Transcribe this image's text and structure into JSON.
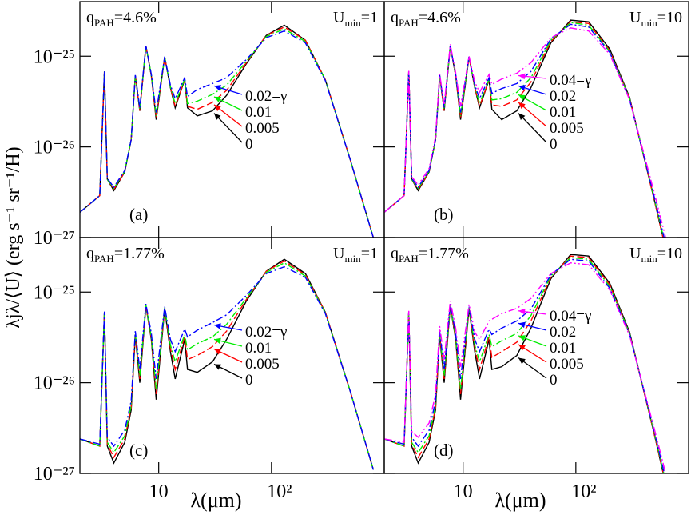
{
  "chart_data": [
    {
      "type": "line",
      "panel_label": "(a)",
      "ylabel": "λjλ/⟨U⟩ (erg s⁻¹ sr⁻¹/H)",
      "q_label": {
        "base": "q",
        "sub": "PAH",
        "text": "=4.6%"
      },
      "u_label": {
        "base": "U",
        "sub": "min",
        "text": "=1"
      },
      "log_x": true,
      "log_y": true,
      "xlim": [
        2,
        1000
      ],
      "ylim": [
        1e-27,
        4e-25
      ],
      "xticks": [
        10,
        {
          "value": 100,
          "label": "10²"
        }
      ],
      "yticks": [
        {
          "value": 1e-27,
          "label": "10⁻²⁷"
        },
        {
          "value": 1e-26,
          "label": "10⁻²⁶"
        },
        {
          "value": 1e-25,
          "label": "10⁻²⁵"
        }
      ],
      "show_xtick_labels": false,
      "show_ytick_labels": true,
      "x": [
        2,
        3,
        3.3,
        3.5,
        4,
        5,
        5.7,
        6.2,
        6.8,
        7.7,
        8.6,
        9.5,
        11.3,
        12.7,
        14,
        17,
        18,
        22,
        30,
        40,
        60,
        90,
        130,
        200,
        300,
        500,
        800
      ],
      "series": [
        {
          "name": "0",
          "color": "#000000",
          "linestyle": "solid",
          "values": [
            1.9e-27,
            2.9e-27,
            6.8e-26,
            4.4e-27,
            3.3e-27,
            5.3e-27,
            1.2e-26,
            6.1e-26,
            2.5e-26,
            1.3e-25,
            6.1e-26,
            2e-26,
            9.8e-26,
            4.5e-26,
            2.7e-26,
            5.5e-26,
            2.7e-26,
            2.2e-26,
            2.5e-26,
            3.7e-26,
            8.3e-26,
            1.7e-25,
            2.2e-25,
            1.5e-25,
            5.5e-26,
            7.2e-27,
            1e-27
          ]
        },
        {
          "name": "0.005",
          "color": "#ff0000",
          "linestyle": "dashed",
          "values": [
            1.9e-27,
            2.9e-27,
            6.8e-26,
            4.4e-27,
            3.4e-27,
            5.3e-27,
            1.2e-26,
            6.1e-26,
            2.5e-26,
            1.3e-25,
            6.1e-26,
            2.1e-26,
            9.8e-26,
            4.5e-26,
            2.8e-26,
            5.5e-26,
            2.8e-26,
            2.6e-26,
            3.1e-26,
            4.2e-26,
            8.5e-26,
            1.7e-25,
            2.1e-25,
            1.5e-25,
            5.5e-26,
            7.2e-27,
            1e-27
          ]
        },
        {
          "name": "0.01",
          "color": "#00ee00",
          "linestyle": "dashdot",
          "values": [
            1.9e-27,
            2.9e-27,
            6.8e-26,
            4.4e-27,
            3.5e-27,
            5.4e-27,
            1.2e-26,
            6.1e-26,
            2.6e-26,
            1.3e-25,
            6.2e-26,
            2.2e-26,
            9.8e-26,
            4.6e-26,
            3e-26,
            5.6e-26,
            3e-26,
            3.2e-26,
            3.8e-26,
            4.8e-26,
            8.8e-26,
            1.65e-25,
            2e-25,
            1.45e-25,
            5.5e-26,
            7.2e-27,
            1e-27
          ]
        },
        {
          "name": "0.02=γ",
          "color": "#0000ff",
          "linestyle": "dashdot",
          "values": [
            1.9e-27,
            2.9e-27,
            6.8e-26,
            4.5e-27,
            3.6e-27,
            5.5e-27,
            1.2e-26,
            6.2e-26,
            2.7e-26,
            1.3e-25,
            6.3e-26,
            2.4e-26,
            9.9e-26,
            4.8e-26,
            3.4e-26,
            5.8e-26,
            3.6e-26,
            4.3e-26,
            5e-26,
            5.8e-26,
            9.2e-26,
            1.6e-25,
            1.9e-25,
            1.4e-25,
            5.4e-26,
            7.2e-27,
            1e-27
          ]
        }
      ]
    },
    {
      "type": "line",
      "panel_label": "(b)",
      "q_label": {
        "base": "q",
        "sub": "PAH",
        "text": "=4.6%"
      },
      "u_label": {
        "base": "U",
        "sub": "min",
        "text": "=10"
      },
      "log_x": true,
      "log_y": true,
      "xlim": [
        2,
        1000
      ],
      "ylim": [
        1e-27,
        4e-25
      ],
      "xticks": [
        10,
        {
          "value": 100,
          "label": "10²"
        }
      ],
      "yticks": [
        {
          "value": 1e-27,
          "label": "10⁻²⁷"
        },
        {
          "value": 1e-26,
          "label": "10⁻²⁶"
        },
        {
          "value": 1e-25,
          "label": "10⁻²⁵"
        }
      ],
      "show_xtick_labels": false,
      "show_ytick_labels": false,
      "x": [
        2,
        3,
        3.3,
        3.5,
        4,
        5,
        5.7,
        6.2,
        6.8,
        7.7,
        8.6,
        9.5,
        11.3,
        12.7,
        14,
        17,
        18,
        22,
        30,
        40,
        60,
        90,
        130,
        200,
        300,
        500,
        800
      ],
      "series": [
        {
          "name": "0",
          "color": "#000000",
          "linestyle": "solid",
          "values": [
            1.9e-27,
            2.9e-27,
            6.8e-26,
            4.4e-27,
            3.3e-27,
            5.3e-27,
            1.2e-26,
            6.1e-26,
            2.5e-26,
            1.3e-25,
            6.1e-26,
            2e-26,
            9.8e-26,
            4.5e-26,
            2.7e-26,
            5.5e-26,
            2.6e-26,
            2e-26,
            2.5e-26,
            4.5e-26,
            1.4e-25,
            2.5e-25,
            2.4e-25,
            1.2e-25,
            3.5e-26,
            2.5e-27,
            2e-28
          ]
        },
        {
          "name": "0.005",
          "color": "#ff0000",
          "linestyle": "dashed",
          "values": [
            1.9e-27,
            2.9e-27,
            6.8e-26,
            4.4e-27,
            3.4e-27,
            5.3e-27,
            1.2e-26,
            6.1e-26,
            2.5e-26,
            1.3e-25,
            6.1e-26,
            2.1e-26,
            9.8e-26,
            4.5e-26,
            2.8e-26,
            5.5e-26,
            2.9e-26,
            2.8e-26,
            3.3e-26,
            5.2e-26,
            1.45e-25,
            2.4e-25,
            2.3e-25,
            1.15e-25,
            3.4e-26,
            2.5e-27,
            2e-28
          ]
        },
        {
          "name": "0.01",
          "color": "#00ee00",
          "linestyle": "dashdot",
          "values": [
            1.9e-27,
            2.9e-27,
            6.8e-26,
            4.4e-27,
            3.5e-27,
            5.4e-27,
            1.2e-26,
            6.1e-26,
            2.6e-26,
            1.3e-25,
            6.2e-26,
            2.2e-26,
            9.8e-26,
            4.6e-26,
            3e-26,
            5.6e-26,
            3.3e-26,
            3.4e-26,
            4e-26,
            5.8e-26,
            1.5e-25,
            2.35e-25,
            2.2e-25,
            1.12e-25,
            3.4e-26,
            2.6e-27,
            2.2e-28
          ]
        },
        {
          "name": "0.02",
          "color": "#0000ff",
          "linestyle": "dashdot",
          "values": [
            1.9e-27,
            2.9e-27,
            6.8e-26,
            4.5e-27,
            3.6e-27,
            5.5e-27,
            1.2e-26,
            6.2e-26,
            2.7e-26,
            1.3e-25,
            6.3e-26,
            2.4e-26,
            9.9e-26,
            4.8e-26,
            3.4e-26,
            5.8e-26,
            3.9e-26,
            4.4e-26,
            5e-26,
            6.8e-26,
            1.55e-25,
            2.25e-25,
            2.1e-25,
            1.1e-25,
            3.3e-26,
            2.7e-27,
            2.4e-28
          ]
        },
        {
          "name": "0.04=γ",
          "color": "#ff00ff",
          "linestyle": "dashdotdot",
          "values": [
            1.9e-27,
            2.9e-27,
            6.9e-26,
            4.7e-27,
            3.8e-27,
            5.8e-27,
            1.3e-26,
            6.4e-26,
            2.9e-26,
            1.35e-25,
            6.6e-26,
            2.8e-26,
            1e-25,
            5.2e-26,
            4e-26,
            6.3e-26,
            4.9e-26,
            5.6e-26,
            6.5e-26,
            8.5e-26,
            1.6e-25,
            2.05e-25,
            1.9e-25,
            1.05e-25,
            3.3e-26,
            3e-27,
            3e-28
          ]
        }
      ]
    },
    {
      "type": "line",
      "panel_label": "(c)",
      "xlabel": "λ(μm)",
      "q_label": {
        "base": "q",
        "sub": "PAH",
        "text": "=1.77%"
      },
      "u_label": {
        "base": "U",
        "sub": "min",
        "text": "=1"
      },
      "log_x": true,
      "log_y": true,
      "xlim": [
        2,
        1000
      ],
      "ylim": [
        1e-27,
        4e-25
      ],
      "xticks": [
        10,
        {
          "value": 100,
          "label": "10²"
        }
      ],
      "yticks": [
        {
          "value": 1e-27,
          "label": "10⁻²⁷"
        },
        {
          "value": 1e-26,
          "label": "10⁻²⁶"
        },
        {
          "value": 1e-25,
          "label": "10⁻²⁵"
        }
      ],
      "show_xtick_labels": true,
      "show_ytick_labels": true,
      "x": [
        2,
        3,
        3.3,
        3.5,
        4,
        5,
        5.7,
        6.2,
        6.8,
        7.7,
        8.6,
        9.5,
        11.3,
        12.7,
        14,
        17,
        18,
        22,
        30,
        40,
        60,
        90,
        130,
        200,
        300,
        500,
        800
      ],
      "series": [
        {
          "name": "0",
          "color": "#000000",
          "linestyle": "solid",
          "values": [
            2.4e-27,
            2e-27,
            6e-26,
            2e-27,
            1.3e-27,
            2.2e-27,
            5e-27,
            3.3e-26,
            1e-26,
            7e-26,
            3e-26,
            6.5e-27,
            6.5e-26,
            2.2e-26,
            1.1e-26,
            3e-26,
            1.4e-26,
            1.3e-26,
            1.7e-26,
            3e-26,
            8e-26,
            1.7e-25,
            2.3e-25,
            1.6e-25,
            6e-26,
            8e-27,
            1.1e-27
          ]
        },
        {
          "name": "0.005",
          "color": "#ff0000",
          "linestyle": "dashed",
          "values": [
            2.4e-27,
            2e-27,
            6e-26,
            2.1e-27,
            1.5e-27,
            2.4e-27,
            5.3e-27,
            3.4e-26,
            1.1e-26,
            7.1e-26,
            3.1e-26,
            7.5e-27,
            6.6e-26,
            2.4e-26,
            1.4e-26,
            3.2e-26,
            1.8e-26,
            2e-26,
            2.5e-26,
            3.7e-26,
            8.3e-26,
            1.7e-25,
            2.2e-25,
            1.55e-25,
            6e-26,
            8e-27,
            1.1e-27
          ]
        },
        {
          "name": "0.01",
          "color": "#00ee00",
          "linestyle": "dashdot",
          "values": [
            2.4e-27,
            2e-27,
            6e-26,
            2.2e-27,
            1.7e-27,
            2.6e-27,
            5.6e-27,
            3.5e-26,
            1.2e-26,
            7.2e-26,
            3.2e-26,
            8.5e-27,
            6.7e-26,
            2.6e-26,
            1.7e-26,
            3.4e-26,
            2.3e-26,
            2.7e-26,
            3.2e-26,
            4.4e-26,
            8.6e-26,
            1.65e-25,
            2.1e-25,
            1.5e-25,
            5.9e-26,
            8e-27,
            1.1e-27
          ]
        },
        {
          "name": "0.02=γ",
          "color": "#0000ff",
          "linestyle": "dashdot",
          "values": [
            2.4e-27,
            2.1e-27,
            6.1e-26,
            2.5e-27,
            2e-27,
            3e-27,
            6.3e-27,
            3.7e-26,
            1.4e-26,
            7.4e-26,
            3.5e-26,
            1.1e-26,
            6.9e-26,
            3e-26,
            2.2e-26,
            3.9e-26,
            3.2e-26,
            3.8e-26,
            4.6e-26,
            5.6e-26,
            9.2e-26,
            1.6e-25,
            1.9e-25,
            1.45e-25,
            5.8e-26,
            8e-27,
            1.1e-27
          ]
        }
      ]
    },
    {
      "type": "line",
      "panel_label": "(d)",
      "xlabel": "λ(μm)",
      "q_label": {
        "base": "q",
        "sub": "PAH",
        "text": "=1.77%"
      },
      "u_label": {
        "base": "U",
        "sub": "min",
        "text": "=10"
      },
      "log_x": true,
      "log_y": true,
      "xlim": [
        2,
        1000
      ],
      "ylim": [
        1e-27,
        4e-25
      ],
      "xticks": [
        10,
        {
          "value": 100,
          "label": "10²"
        }
      ],
      "yticks": [
        {
          "value": 1e-27,
          "label": "10⁻²⁷"
        },
        {
          "value": 1e-26,
          "label": "10⁻²⁶"
        },
        {
          "value": 1e-25,
          "label": "10⁻²⁵"
        }
      ],
      "show_xtick_labels": true,
      "show_ytick_labels": false,
      "x": [
        2,
        3,
        3.3,
        3.5,
        4,
        5,
        5.7,
        6.2,
        6.8,
        7.7,
        8.6,
        9.5,
        11.3,
        12.7,
        14,
        17,
        18,
        22,
        30,
        40,
        60,
        90,
        130,
        200,
        300,
        500,
        800
      ],
      "series": [
        {
          "name": "0",
          "color": "#000000",
          "linestyle": "solid",
          "values": [
            2.4e-27,
            2e-27,
            6e-26,
            2e-27,
            1.3e-27,
            2.2e-27,
            5e-27,
            3.3e-26,
            1e-26,
            7e-26,
            3e-26,
            6.5e-27,
            6.5e-26,
            2.2e-26,
            1.1e-26,
            3e-26,
            1.4e-26,
            1.5e-26,
            2e-26,
            4e-26,
            1.4e-25,
            2.6e-25,
            2.5e-25,
            1.25e-25,
            3.6e-26,
            2.6e-27,
            2e-28
          ]
        },
        {
          "name": "0.005",
          "color": "#ff0000",
          "linestyle": "dashed",
          "values": [
            2.4e-27,
            2e-27,
            6e-26,
            2.1e-27,
            1.5e-27,
            2.4e-27,
            5.3e-27,
            3.4e-26,
            1.1e-26,
            7.1e-26,
            3.1e-26,
            7.5e-27,
            6.6e-26,
            2.4e-26,
            1.4e-26,
            3.2e-26,
            1.9e-26,
            2.2e-26,
            2.8e-26,
            4.8e-26,
            1.45e-25,
            2.5e-25,
            2.4e-25,
            1.2e-25,
            3.5e-26,
            2.6e-27,
            2.1e-28
          ]
        },
        {
          "name": "0.01",
          "color": "#00ee00",
          "linestyle": "dashdot",
          "values": [
            2.4e-27,
            2e-27,
            6e-26,
            2.2e-27,
            1.7e-27,
            2.6e-27,
            5.6e-27,
            3.5e-26,
            1.2e-26,
            7.2e-26,
            3.2e-26,
            8.5e-27,
            6.7e-26,
            2.6e-26,
            1.7e-26,
            3.4e-26,
            2.5e-26,
            2.9e-26,
            3.5e-26,
            5.5e-26,
            1.5e-25,
            2.4e-25,
            2.3e-25,
            1.15e-25,
            3.5e-26,
            2.7e-27,
            2.2e-28
          ]
        },
        {
          "name": "0.02",
          "color": "#0000ff",
          "linestyle": "dashdot",
          "values": [
            2.4e-27,
            2.1e-27,
            6.1e-26,
            2.5e-27,
            2e-27,
            3e-27,
            6.3e-27,
            3.7e-26,
            1.4e-26,
            7.4e-26,
            3.5e-26,
            1.1e-26,
            6.9e-26,
            3e-26,
            2.2e-26,
            3.9e-26,
            3.4e-26,
            4e-26,
            4.8e-26,
            6.5e-26,
            1.55e-25,
            2.3e-25,
            2.2e-25,
            1.1e-25,
            3.4e-26,
            2.8e-27,
            2.4e-28
          ]
        },
        {
          "name": "0.04=γ",
          "color": "#ff00ff",
          "linestyle": "dashdotdot",
          "values": [
            2.4e-27,
            2.2e-27,
            6.2e-26,
            2.9e-27,
            2.5e-27,
            3.6e-27,
            7.5e-27,
            4.2e-26,
            1.8e-26,
            8e-26,
            4e-26,
            1.5e-26,
            7.3e-26,
            3.6e-26,
            3e-26,
            4.8e-26,
            5e-26,
            5.8e-26,
            6.6e-26,
            8.5e-26,
            1.6e-25,
            2.1e-25,
            2e-25,
            1.05e-25,
            3.3e-26,
            3e-27,
            3e-28
          ]
        }
      ]
    }
  ]
}
